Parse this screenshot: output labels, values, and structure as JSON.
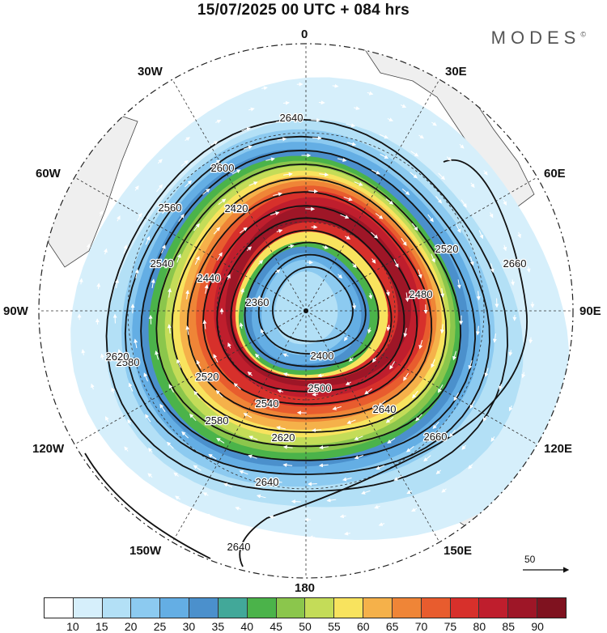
{
  "header": {
    "title": "15/07/2025  00 UTC  + 084 hrs",
    "brand": "MODES"
  },
  "map": {
    "projection": "south-polar-stereographic",
    "field": "geopotential height contours with wind speed shading and wind vectors",
    "longitude_labels": [
      "0",
      "30E",
      "60E",
      "90E",
      "120E",
      "150E",
      "180",
      "150W",
      "120W",
      "90W",
      "60W",
      "30W"
    ],
    "contour_labels": [
      "2360",
      "2400",
      "2420",
      "2440",
      "2480",
      "2500",
      "2520",
      "2540",
      "2560",
      "2580",
      "2600",
      "2620",
      "2640",
      "2660"
    ],
    "reference_vector": {
      "label": "50"
    }
  },
  "legend": {
    "ticks": [
      "10",
      "15",
      "20",
      "25",
      "30",
      "35",
      "40",
      "45",
      "50",
      "55",
      "60",
      "65",
      "70",
      "75",
      "80",
      "85",
      "90"
    ],
    "colors": [
      "#ffffff",
      "#d6effb",
      "#b3e0f6",
      "#8ccaf0",
      "#64aee4",
      "#4b90cc",
      "#42a899",
      "#4bb34a",
      "#8bc64c",
      "#c4dc58",
      "#f8e35e",
      "#f5b14a",
      "#ef8537",
      "#e85c2e",
      "#d7302b",
      "#bf1e2d",
      "#9e1627",
      "#7f121f"
    ]
  }
}
